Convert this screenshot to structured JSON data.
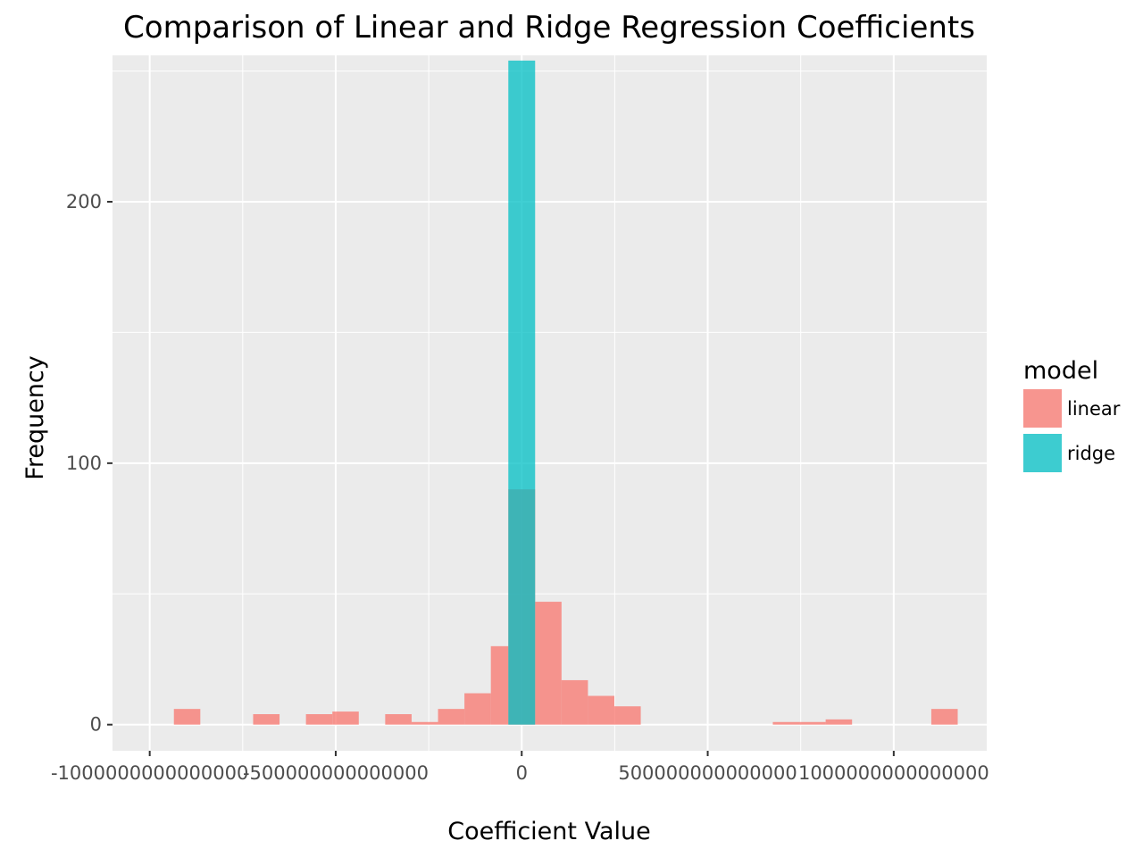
{
  "chart_data": {
    "type": "bar",
    "title": "Comparison of Linear and Ridge Regression Coefficients",
    "xlabel": "Coefficient Value",
    "ylabel": "Frequency",
    "xlim": [
      -1100000000000000,
      1250000000000000
    ],
    "ylim": [
      -10,
      256
    ],
    "x_ticks": [
      {
        "value": -1000000000000000,
        "label": "-1000000000000000"
      },
      {
        "value": -500000000000000,
        "label": "-500000000000000"
      },
      {
        "value": 0,
        "label": "0"
      },
      {
        "value": 500000000000000,
        "label": "500000000000000"
      },
      {
        "value": 1000000000000000,
        "label": "1000000000000000"
      }
    ],
    "y_ticks": [
      {
        "value": 0,
        "label": "0"
      },
      {
        "value": 100,
        "label": "100"
      },
      {
        "value": 200,
        "label": "200"
      }
    ],
    "grid": true,
    "legend": {
      "title": "model",
      "position": "right"
    },
    "series": [
      {
        "name": "linear",
        "color": "#F8766D",
        "bins": [
          {
            "x0": -935000000000000,
            "x1": -864000000000000,
            "count": 6
          },
          {
            "x0": -722000000000000,
            "x1": -651000000000000,
            "count": 4
          },
          {
            "x0": -580000000000000,
            "x1": -509000000000000,
            "count": 4
          },
          {
            "x0": -509000000000000,
            "x1": -438000000000000,
            "count": 5
          },
          {
            "x0": -367000000000000,
            "x1": -296000000000000,
            "count": 4
          },
          {
            "x0": -296000000000000,
            "x1": -225000000000000,
            "count": 1
          },
          {
            "x0": -225000000000000,
            "x1": -154000000000000,
            "count": 6
          },
          {
            "x0": -154000000000000,
            "x1": -83000000000000,
            "count": 12
          },
          {
            "x0": -83000000000000,
            "x1": -36000000000000,
            "count": 30
          },
          {
            "x0": -36000000000000,
            "x1": 36000000000000,
            "count": 90
          },
          {
            "x0": 36000000000000,
            "x1": 107000000000000,
            "count": 47
          },
          {
            "x0": 107000000000000,
            "x1": 178000000000000,
            "count": 17
          },
          {
            "x0": 178000000000000,
            "x1": 249000000000000,
            "count": 11
          },
          {
            "x0": 249000000000000,
            "x1": 320000000000000,
            "count": 7
          },
          {
            "x0": 675000000000000,
            "x1": 746000000000000,
            "count": 1
          },
          {
            "x0": 746000000000000,
            "x1": 817000000000000,
            "count": 1
          },
          {
            "x0": 817000000000000,
            "x1": 888000000000000,
            "count": 2
          },
          {
            "x0": 1101000000000000,
            "x1": 1172000000000000,
            "count": 6
          }
        ]
      },
      {
        "name": "ridge",
        "color": "#00BFC4",
        "bins": [
          {
            "x0": -36000000000000,
            "x1": 36000000000000,
            "count": 254
          }
        ]
      }
    ]
  }
}
